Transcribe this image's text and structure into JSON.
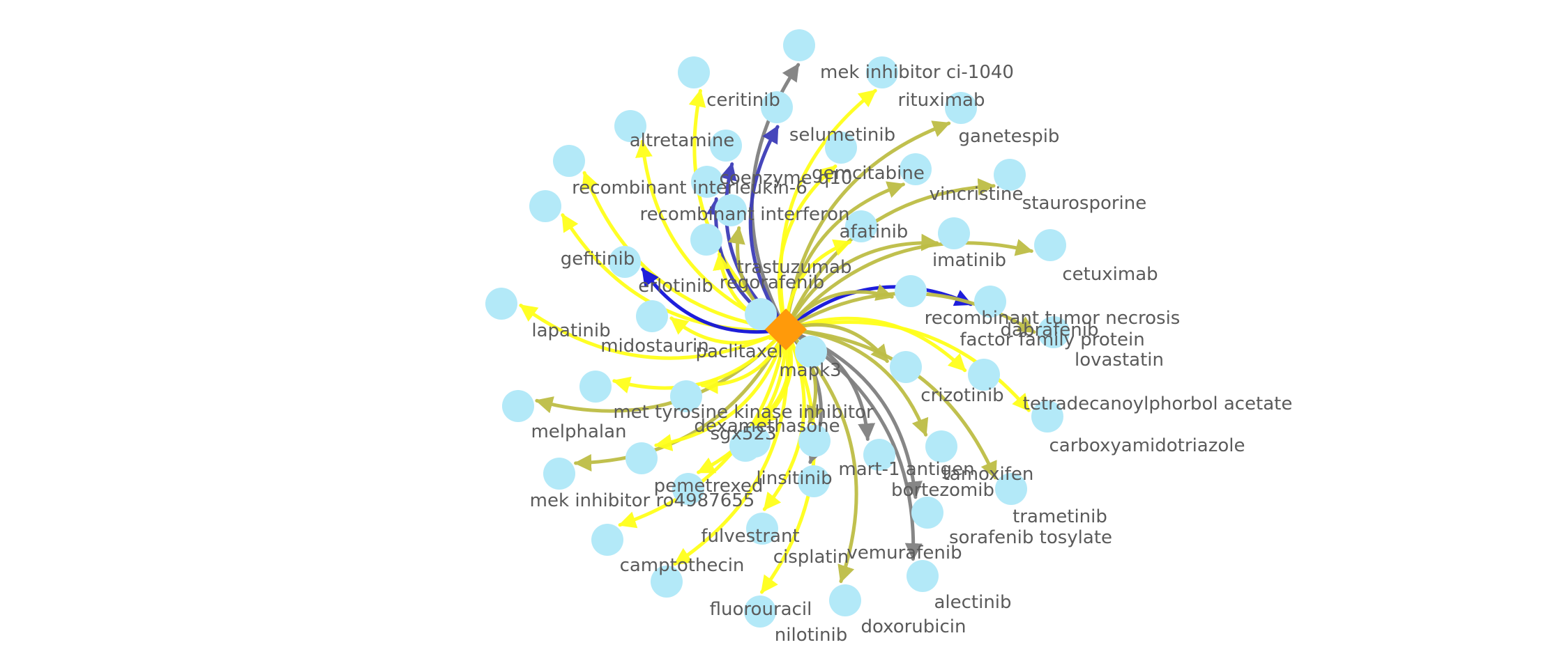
{
  "graph": {
    "center": {
      "label": "mapk3",
      "shape": "diamond",
      "color": "#FF9A0A"
    },
    "node_color": "#B3E9F8",
    "label_color": "#5A5A5A",
    "edge_colors": {
      "yellow": "#FFFF1A",
      "olive": "#BDBD45",
      "gray": "#808080",
      "blue": "#1212DA",
      "indigo": "#3D3DB8"
    },
    "nodes": [
      {
        "label": "mek inhibitor ci-1040",
        "edge": "gray"
      },
      {
        "label": "rituximab",
        "edge": "yellow"
      },
      {
        "label": "ganetespib",
        "edge": "olive"
      },
      {
        "label": "staurosporine",
        "edge": "olive"
      },
      {
        "label": "cetuximab",
        "edge": "olive"
      },
      {
        "label": "dabrafenib",
        "edge": "blue"
      },
      {
        "label": "lovastatin",
        "edge": "olive"
      },
      {
        "label": "tetradecanoylphorbol acetate",
        "edge": "yellow"
      },
      {
        "label": "carboxyamidotriazole",
        "edge": "olive"
      },
      {
        "label": "tamoxifen",
        "edge": "olive"
      },
      {
        "label": "trametinib",
        "edge": "gray"
      },
      {
        "label": "sorafenib tosylate",
        "edge": "gray"
      },
      {
        "label": "alectinib",
        "edge": "olive"
      },
      {
        "label": "doxorubicin",
        "edge": "yellow"
      },
      {
        "label": "nilotinib",
        "edge": "yellow"
      },
      {
        "label": "fluorouracil",
        "edge": "yellow"
      },
      {
        "label": "camptothecin",
        "edge": "olive"
      },
      {
        "label": "mek inhibitor ro4987655",
        "edge": "olive"
      },
      {
        "label": "melphalan",
        "edge": "yellow"
      },
      {
        "label": "lapatinib",
        "edge": "yellow"
      },
      {
        "label": "gefitinib",
        "edge": "yellow"
      },
      {
        "label": "recombinant interleukin-6",
        "edge": "yellow"
      },
      {
        "label": "altretamine",
        "edge": "yellow"
      },
      {
        "label": "ceritinib",
        "edge": "indigo"
      },
      {
        "label": "selumetinib",
        "edge": "yellow"
      },
      {
        "label": "gemcitabine",
        "edge": "olive"
      },
      {
        "label": "vincristine",
        "edge": "olive"
      },
      {
        "label": "imatinib",
        "edge": "olive"
      },
      {
        "label": "recombinant tumor necrosis factor family protein",
        "edge": "yellow"
      },
      {
        "label": "crizotinib",
        "edge": "olive"
      },
      {
        "label": "bortezomib",
        "edge": "gray"
      },
      {
        "label": "vemurafenib",
        "edge": "gray"
      },
      {
        "label": "cisplatin",
        "edge": "yellow"
      },
      {
        "label": "fulvestrant",
        "edge": "yellow"
      },
      {
        "label": "pemetrexed",
        "edge": "yellow"
      },
      {
        "label": "met tyrosine kinase inhibitor sgx523",
        "edge": "yellow"
      },
      {
        "label": "midostaurin",
        "edge": "yellow"
      },
      {
        "label": "erlotinib",
        "edge": "blue"
      },
      {
        "label": "recombinant interferon",
        "edge": "yellow"
      },
      {
        "label": "coenzyme q10",
        "edge": "indigo"
      },
      {
        "label": "afatinib",
        "edge": "yellow"
      },
      {
        "label": "regorafenib",
        "edge": "yellow"
      },
      {
        "label": "mart-1 antigen",
        "edge": "olive"
      },
      {
        "label": "linsitinib",
        "edge": "yellow"
      },
      {
        "label": "dexamethasone",
        "edge": "yellow"
      },
      {
        "label": "paclitaxel",
        "edge": "yellow"
      },
      {
        "label": "trastuzumab",
        "edge": "olive"
      },
      {
        "label": "",
        "edge": "indigo"
      },
      {
        "label": "",
        "edge": "olive"
      }
    ]
  }
}
